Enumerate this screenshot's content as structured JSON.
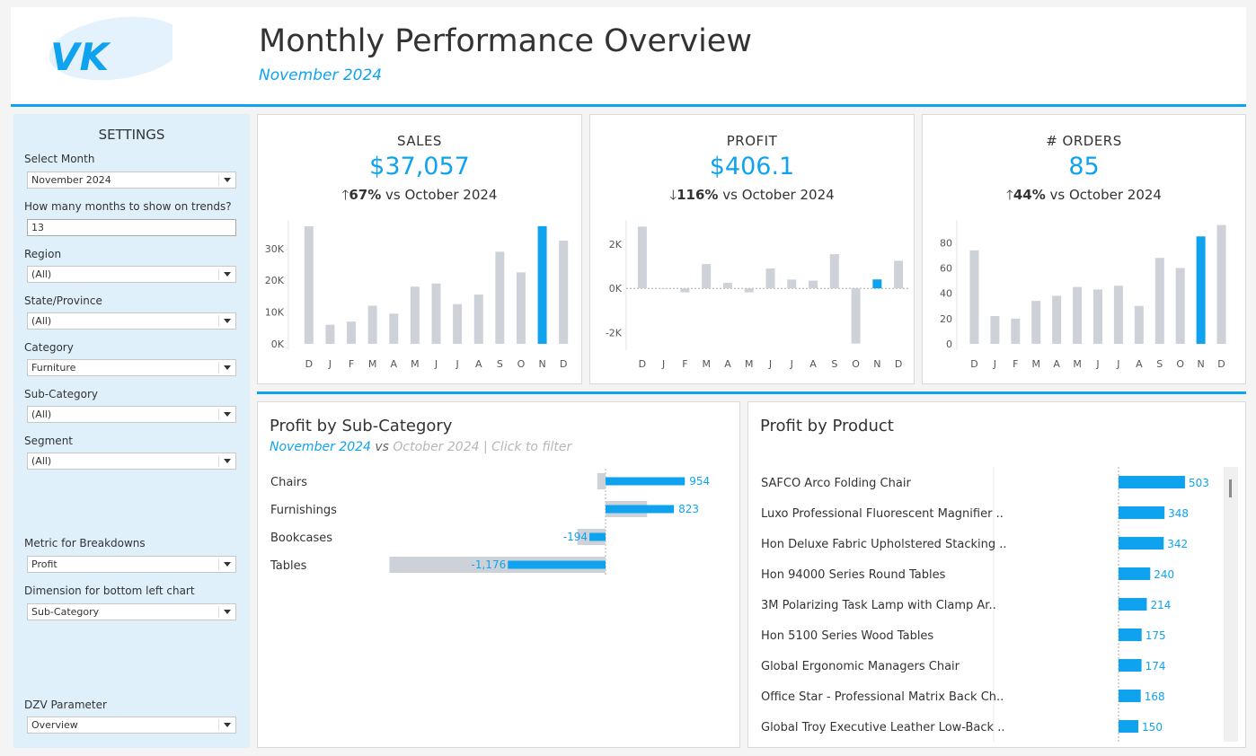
{
  "header": {
    "logo_text": "VK",
    "title": "Monthly Performance Overview",
    "subtitle": "November 2024"
  },
  "settings": {
    "title": "SETTINGS",
    "select_month": {
      "label": "Select Month",
      "value": "November 2024"
    },
    "months_on_trends": {
      "label": "How many months to show on trends?",
      "value": "13"
    },
    "region": {
      "label": "Region",
      "value": "(All)"
    },
    "state": {
      "label": "State/Province",
      "value": "(All)"
    },
    "category": {
      "label": "Category",
      "value": "Furniture"
    },
    "sub_category": {
      "label": "Sub-Category",
      "value": "(All)"
    },
    "segment": {
      "label": "Segment",
      "value": "(All)"
    },
    "metric": {
      "label": "Metric for Breakdowns",
      "value": "Profit"
    },
    "dimension": {
      "label": "Dimension for bottom left chart",
      "value": "Sub-Category"
    },
    "dzv": {
      "label": "DZV Parameter",
      "value": "Overview"
    }
  },
  "kpis": {
    "sales": {
      "label": "SALES",
      "value": "$37,057",
      "arrow": "🡑",
      "pct": "67%",
      "compare": " vs October 2024"
    },
    "profit": {
      "label": "PROFIT",
      "value": "$406.1",
      "arrow": "🡓",
      "pct": "116%",
      "compare": " vs October 2024"
    },
    "orders": {
      "label": "# ORDERS",
      "value": "85",
      "arrow": "🡑",
      "pct": "44%",
      "compare": " vs October 2024"
    }
  },
  "colors": {
    "accent": "#0fa3ef",
    "bar_grey": "#cdd2d8"
  },
  "chart_data": [
    {
      "type": "bar",
      "name": "sales-trend",
      "categories": [
        "D",
        "J",
        "F",
        "M",
        "A",
        "M",
        "J",
        "J",
        "A",
        "S",
        "O",
        "N",
        "D"
      ],
      "values": [
        37000,
        6000,
        7000,
        12000,
        9500,
        18000,
        19000,
        12500,
        15500,
        29000,
        22500,
        37057,
        32500
      ],
      "highlight_index": 11,
      "yticks": [
        {
          "v": 0,
          "label": "0K"
        },
        {
          "v": 10000,
          "label": "10K"
        },
        {
          "v": 20000,
          "label": "20K"
        },
        {
          "v": 30000,
          "label": "30K"
        }
      ],
      "ylim": [
        -2000,
        39000
      ]
    },
    {
      "type": "bar",
      "name": "profit-trend",
      "categories": [
        "D",
        "J",
        "F",
        "M",
        "A",
        "M",
        "J",
        "J",
        "A",
        "S",
        "O",
        "N",
        "D"
      ],
      "values": [
        2800,
        0,
        -180,
        1100,
        250,
        -180,
        900,
        400,
        350,
        1550,
        -2500,
        406.1,
        1250
      ],
      "highlight_index": 11,
      "yticks": [
        {
          "v": -2000,
          "label": "-2K"
        },
        {
          "v": 0,
          "label": "0K"
        },
        {
          "v": 2000,
          "label": "2K"
        }
      ],
      "ylim": [
        -2800,
        3100
      ]
    },
    {
      "type": "bar",
      "name": "orders-trend",
      "categories": [
        "D",
        "J",
        "F",
        "M",
        "A",
        "M",
        "J",
        "J",
        "A",
        "S",
        "O",
        "N",
        "D"
      ],
      "values": [
        74,
        22,
        20,
        34,
        38,
        45,
        43,
        46,
        30,
        68,
        60,
        85,
        94
      ],
      "highlight_index": 11,
      "yticks": [
        {
          "v": 0,
          "label": "0"
        },
        {
          "v": 20,
          "label": "20"
        },
        {
          "v": 40,
          "label": "40"
        },
        {
          "v": 60,
          "label": "60"
        },
        {
          "v": 80,
          "label": "80"
        }
      ],
      "ylim": [
        -5,
        98
      ]
    },
    {
      "type": "bar",
      "name": "profit-by-subcategory",
      "title": "Profit by Sub-Category",
      "categories": [
        "Chairs",
        "Furnishings",
        "Bookcases",
        "Tables"
      ],
      "series": [
        {
          "name": "November 2024",
          "values": [
            954,
            823,
            -194,
            -1176
          ]
        },
        {
          "name": "October 2024",
          "values": [
            -100,
            500,
            -340,
            -2600
          ]
        }
      ],
      "labels": [
        "954",
        "823",
        "-194",
        "-1,176"
      ]
    },
    {
      "type": "bar",
      "name": "profit-by-product",
      "title": "Profit by Product",
      "categories": [
        "SAFCO Arco Folding Chair",
        "Luxo Professional Fluorescent Magnifier ..",
        "Hon Deluxe Fabric Upholstered Stacking ..",
        "Hon 94000 Series Round Tables",
        "3M Polarizing Task Lamp with Clamp Ar..",
        "Hon 5100 Series Wood Tables",
        "Global Ergonomic Managers Chair",
        "Office Star - Professional Matrix Back Ch..",
        "Global Troy Executive Leather Low-Back .."
      ],
      "values": [
        503,
        348,
        342,
        240,
        214,
        175,
        174,
        168,
        150
      ]
    }
  ],
  "subcategory_panel": {
    "title": "Profit by Sub-Category",
    "current": "November 2024",
    "vs": " vs ",
    "previous": "October 2024",
    "hint": "  | Click to filter"
  },
  "product_panel": {
    "title": "Profit by Product"
  }
}
